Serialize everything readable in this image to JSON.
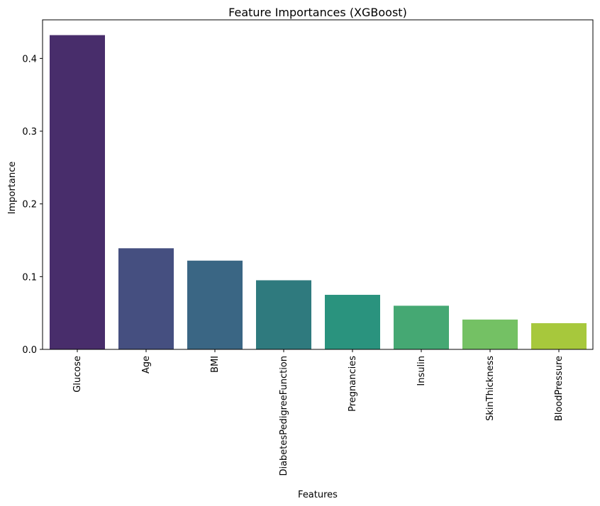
{
  "chart_data": {
    "type": "bar",
    "title": "Feature Importances (XGBoost)",
    "xlabel": "Features",
    "ylabel": "Importance",
    "categories": [
      "Glucose",
      "Age",
      "BMI",
      "DiabetesPedigreeFunction",
      "Pregnancies",
      "Insulin",
      "SkinThickness",
      "BloodPressure"
    ],
    "values": [
      0.432,
      0.139,
      0.122,
      0.095,
      0.075,
      0.06,
      0.041,
      0.036
    ],
    "colors": [
      "#482d6b",
      "#454f80",
      "#3a6684",
      "#2f7a7e",
      "#2a937e",
      "#45a873",
      "#74c164",
      "#a7c83c"
    ],
    "ylim": [
      0,
      0.453
    ],
    "yticks": [
      0.0,
      0.1,
      0.2,
      0.3,
      0.4
    ],
    "ytick_labels": [
      "0.0",
      "0.1",
      "0.2",
      "0.3",
      "0.4"
    ],
    "grid": false,
    "legend": false
  }
}
